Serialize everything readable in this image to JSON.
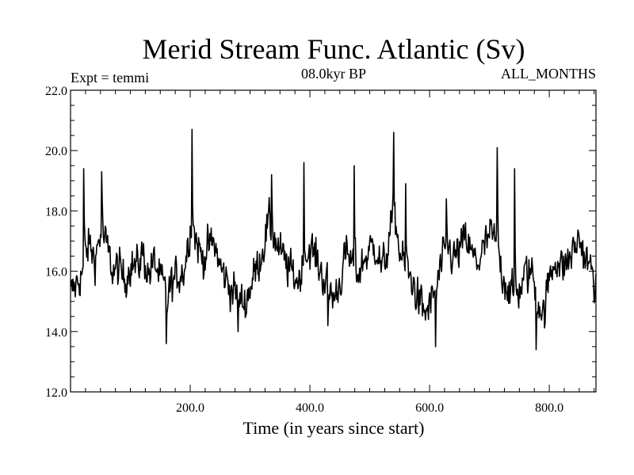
{
  "chart_data": {
    "type": "line",
    "title": "Merid Stream Func. Atlantic (Sv)",
    "left_label": "Expt = temmi",
    "center_label": "08.0kyr BP",
    "right_label": "ALL_MONTHS",
    "xlabel": "Time (in years since start)",
    "ylabel": "",
    "xlim": [
      0,
      878
    ],
    "ylim": [
      12.0,
      22.0
    ],
    "x_ticks": [
      200,
      400,
      600,
      800
    ],
    "x_tick_labels": [
      "200.0",
      "400.0",
      "600.0",
      "800.0"
    ],
    "y_ticks": [
      12,
      14,
      16,
      18,
      20,
      22
    ],
    "y_tick_labels": [
      "12.0",
      "14.0",
      "16.0",
      "18.0",
      "20.0",
      "22.0"
    ],
    "grid": false,
    "series": [
      {
        "x": [
          0,
          10,
          20,
          30,
          40,
          50,
          60,
          70,
          80,
          90,
          100,
          110,
          120,
          130,
          140,
          150,
          160,
          170,
          180,
          190,
          200,
          210,
          220,
          230,
          240,
          250,
          260,
          270,
          280,
          290,
          300,
          310,
          320,
          330,
          340,
          350,
          360,
          370,
          380,
          390,
          400,
          410,
          420,
          430,
          440,
          450,
          460,
          470,
          480,
          490,
          500,
          510,
          520,
          530,
          540,
          550,
          560,
          570,
          580,
          590,
          600,
          610,
          620,
          630,
          640,
          650,
          660,
          670,
          680,
          690,
          700,
          710,
          720,
          730,
          740,
          750,
          760,
          770,
          780,
          790,
          800,
          810,
          820,
          830,
          840,
          850,
          860,
          870,
          878
        ],
        "values": [
          15.2,
          15.6,
          16.0,
          16.9,
          16.4,
          17.3,
          16.8,
          16.0,
          16.1,
          15.7,
          16.3,
          16.1,
          16.6,
          15.9,
          16.3,
          15.7,
          15.2,
          15.6,
          15.9,
          16.1,
          17.6,
          17.0,
          16.4,
          16.8,
          16.9,
          16.1,
          15.7,
          15.4,
          15.1,
          14.9,
          15.5,
          16.1,
          16.7,
          17.6,
          17.1,
          16.6,
          16.2,
          15.9,
          15.7,
          16.3,
          16.8,
          16.4,
          15.9,
          15.5,
          15.1,
          15.7,
          16.6,
          16.2,
          15.9,
          16.4,
          16.7,
          16.9,
          16.0,
          16.8,
          18.0,
          16.6,
          16.0,
          15.7,
          15.1,
          14.6,
          14.8,
          15.5,
          16.2,
          16.8,
          16.4,
          16.7,
          17.1,
          16.5,
          16.3,
          16.7,
          17.2,
          17.0,
          16.0,
          15.5,
          15.1,
          15.4,
          15.9,
          16.0,
          15.2,
          14.5,
          15.8,
          16.5,
          16.1,
          16.3,
          16.7,
          17.1,
          16.4,
          16.0,
          15.6
        ]
      }
    ]
  }
}
